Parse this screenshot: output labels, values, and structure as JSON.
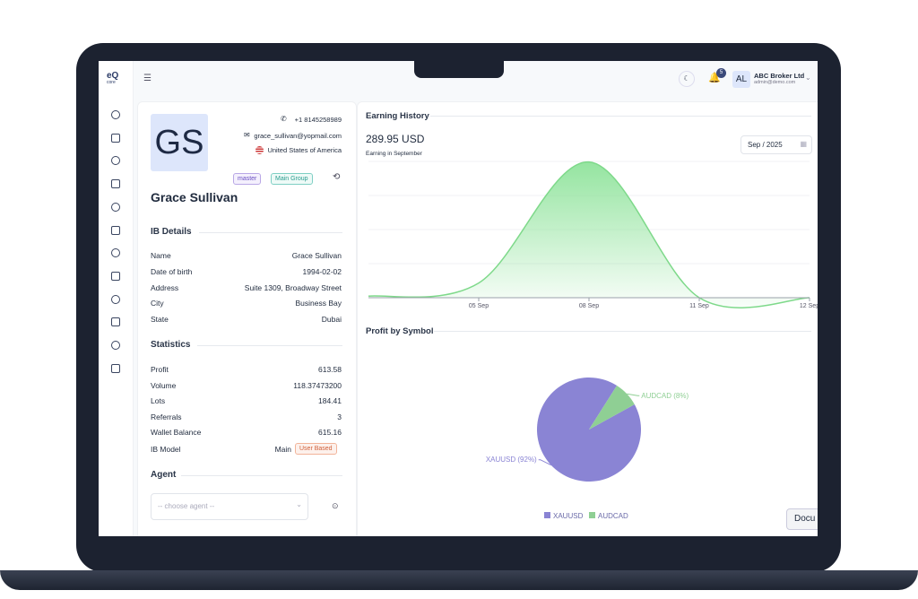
{
  "logo": {
    "mark": "eQ",
    "word": "core"
  },
  "header": {
    "notifications": 5,
    "avatar": "AL",
    "company": "ABC Broker Ltd",
    "email": "admin@demo.com"
  },
  "profile": {
    "initials": "GS",
    "phone": "+1 8145258989",
    "email": "grace_sullivan@yopmail.com",
    "country": "United States of America",
    "tags": [
      "master",
      "Main Group"
    ],
    "name": "Grace Sullivan"
  },
  "ib_details": {
    "title": "IB Details",
    "rows": [
      [
        "Name",
        "Grace Sullivan"
      ],
      [
        "Date of birth",
        "1994-02-02"
      ],
      [
        "Address",
        "Suite 1309, Broadway Street"
      ],
      [
        "City",
        "Business Bay"
      ],
      [
        "State",
        "Dubai"
      ]
    ]
  },
  "statistics": {
    "title": "Statistics",
    "rows": [
      [
        "Profit",
        "613.58"
      ],
      [
        "Volume",
        "118.37473200"
      ],
      [
        "Lots",
        "184.41"
      ],
      [
        "Referrals",
        "3"
      ],
      [
        "Wallet Balance",
        "615.16"
      ]
    ],
    "ib_model": {
      "label": "IB Model",
      "value": "Main",
      "badge": "User Based"
    }
  },
  "agent": {
    "title": "Agent",
    "placeholder": "-- choose agent --"
  },
  "earning_history": {
    "type": "area",
    "title": "Earning History",
    "total": "289.95 USD",
    "caption": "Earning in September",
    "period": "Sep / 2025",
    "categories": [
      null,
      "05 Sep",
      "08 Sep",
      "11 Sep",
      "12 Sep"
    ],
    "values": [
      3,
      28,
      258.95,
      0,
      0
    ],
    "ylim": [
      0,
      260
    ],
    "color": "#7ed98a"
  },
  "profit_by_symbol": {
    "type": "pie",
    "title": "Profit by Symbol",
    "categories": [
      "XAUUSD",
      "AUDCAD"
    ],
    "values": [
      92,
      8
    ],
    "value_labels": [
      "XAUUSD (92%)",
      "AUDCAD (8%)"
    ],
    "colors": [
      "#8a84d4",
      "#8fcf94"
    ]
  },
  "docs_button": "Docu"
}
